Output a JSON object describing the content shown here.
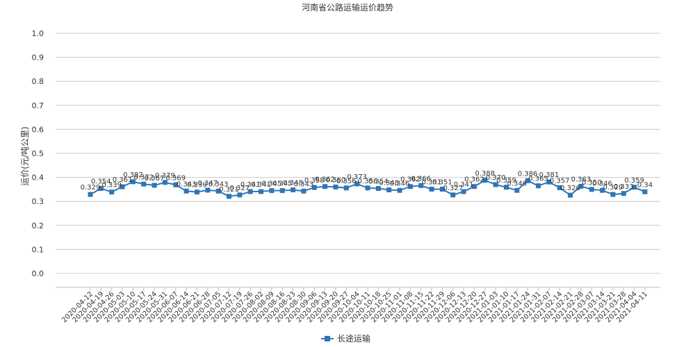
{
  "chart_data": {
    "type": "line",
    "title": "河南省公路运输运价趋势",
    "ylabel": "运价(元/吨公里)",
    "xlabel": "",
    "ylim": [
      0,
      1.0
    ],
    "yticks": [
      "0.0",
      "0.1",
      "0.2",
      "0.3",
      "0.4",
      "0.5",
      "0.6",
      "0.7",
      "0.8",
      "0.9",
      "1.0"
    ],
    "grid": true,
    "legend_position": "bottom",
    "color": "#2e75b6",
    "categories": [
      "2020-04-12",
      "2020-04-19",
      "2020-04-26",
      "2020-05-03",
      "2020-05-10",
      "2020-05-17",
      "2020-05-24",
      "2020-05-31",
      "2020-06-07",
      "2020-06-14",
      "2020-06-21",
      "2020-06-28",
      "2020-07-05",
      "2020-07-12",
      "2020-07-19",
      "2020-07-26",
      "2020-08-02",
      "2020-08-09",
      "2020-08-16",
      "2020-08-23",
      "2020-08-30",
      "2020-09-06",
      "2020-09-13",
      "2020-09-20",
      "2020-09-27",
      "2020-10-04",
      "2020-10-11",
      "2020-10-18",
      "2020-10-25",
      "2020-11-01",
      "2020-11-08",
      "2020-11-15",
      "2020-11-22",
      "2020-11-29",
      "2020-12-06",
      "2020-12-13",
      "2020-12-20",
      "2020-12-27",
      "2021-01-03",
      "2021-01-10",
      "2021-01-17",
      "2021-01-24",
      "2021-01-31",
      "2021-02-07",
      "2021-02-14",
      "2021-02-21",
      "2021-02-28",
      "2021-03-07",
      "2021-03-14",
      "2021-03-21",
      "2021-03-28",
      "2021-04-04",
      "2021-04-11"
    ],
    "series": [
      {
        "name": "长途运输",
        "values": [
          0.329,
          0.354,
          0.339,
          0.361,
          0.382,
          0.372,
          0.367,
          0.379,
          0.369,
          0.343,
          0.339,
          0.347,
          0.343,
          0.321,
          0.327,
          0.341,
          0.341,
          0.345,
          0.345,
          0.348,
          0.343,
          0.358,
          0.362,
          0.36,
          0.356,
          0.373,
          0.356,
          0.354,
          0.348,
          0.346,
          0.362,
          0.366,
          0.351,
          0.351,
          0.327,
          0.341,
          0.362,
          0.388,
          0.37,
          0.359,
          0.346,
          0.386,
          0.365,
          0.381,
          0.357,
          0.326,
          0.363,
          0.35,
          0.346,
          0.329,
          0.333,
          0.359,
          0.34
        ],
        "labels": [
          "0.329",
          "0.354",
          "0.339",
          "0.361",
          "0.382",
          "0.372",
          "0.367",
          "0.379",
          "0.369",
          "0.343",
          "0.339",
          "0.347",
          "0.343",
          "0.321",
          "0.327",
          "0.341",
          "0.341",
          "0.345",
          "0.345",
          "0.348",
          "0.343",
          "0.358",
          "0.362",
          "0.360",
          "0.356",
          "0.373",
          "0.356",
          "0.354",
          "0.348",
          "0.346",
          "0.362",
          "0.366",
          "0.351",
          "0.351",
          "0.327",
          "0.341",
          "0.362",
          "0.388",
          "0.370",
          "0.359",
          "0.346",
          "0.386",
          "0.365",
          "0.381",
          "0.357",
          "0.326",
          "0.363",
          "0.350",
          "0.346",
          "0.329",
          "0.333",
          "0.359",
          "0.34"
        ]
      }
    ]
  }
}
